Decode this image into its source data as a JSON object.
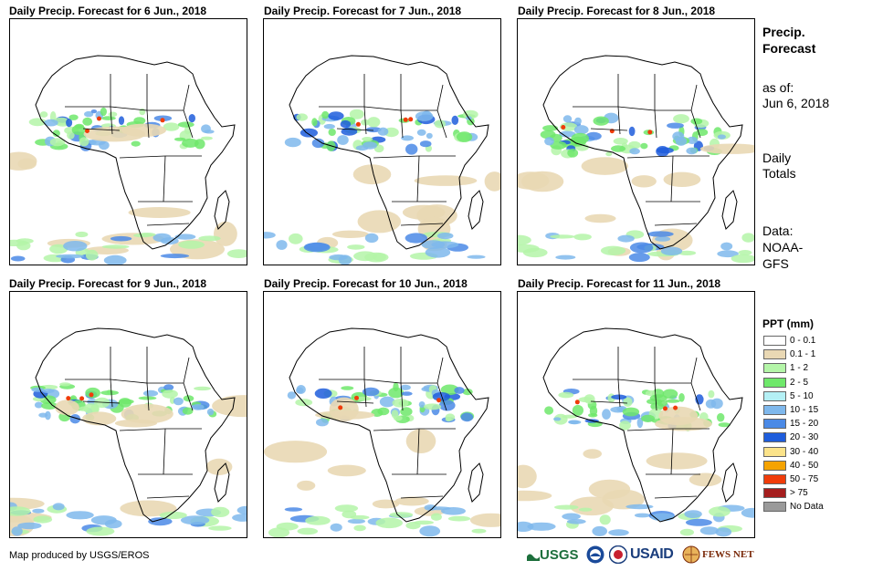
{
  "panels": [
    {
      "title": "Daily Precip. Forecast for 6 Jun., 2018"
    },
    {
      "title": "Daily Precip. Forecast for 7 Jun., 2018"
    },
    {
      "title": "Daily Precip. Forecast for 8 Jun., 2018"
    },
    {
      "title": "Daily Precip. Forecast for 9 Jun., 2018"
    },
    {
      "title": "Daily Precip. Forecast for 10 Jun., 2018"
    },
    {
      "title": "Daily Precip. Forecast for 11 Jun., 2018"
    }
  ],
  "sidebar": {
    "title": "Precip. Forecast",
    "as_of_label": "as of:",
    "as_of_date": "Jun 6, 2018",
    "daily_line1": "Daily",
    "daily_line2": "Totals",
    "data_line1": "Data:",
    "data_line2": "NOAA-",
    "data_line3": "GFS"
  },
  "legend": {
    "title": "PPT (mm)",
    "items": [
      {
        "label": "0 - 0.1",
        "color": "#ffffff"
      },
      {
        "label": "0.1 - 1",
        "color": "#e9d8b4"
      },
      {
        "label": "1 - 2",
        "color": "#b4f5a8"
      },
      {
        "label": "2 - 5",
        "color": "#6fe86b"
      },
      {
        "label": "5 - 10",
        "color": "#b4f0f5"
      },
      {
        "label": "10 - 15",
        "color": "#7fb8ec"
      },
      {
        "label": "15 - 20",
        "color": "#4b8ae6"
      },
      {
        "label": "20 - 30",
        "color": "#1e5ddc"
      },
      {
        "label": "30 - 40",
        "color": "#fbe38a"
      },
      {
        "label": "40 - 50",
        "color": "#f5a300"
      },
      {
        "label": "50 - 75",
        "color": "#f03c0a"
      },
      {
        "label": "> 75",
        "color": "#a51e1e"
      },
      {
        "label": "No Data",
        "color": "#9a9a9a"
      }
    ]
  },
  "footer": {
    "credit": "Map produced by USGS/EROS",
    "logo_usgs": "USGS",
    "logo_usaid": "USAID",
    "logo_fews": "FEWS NET"
  }
}
